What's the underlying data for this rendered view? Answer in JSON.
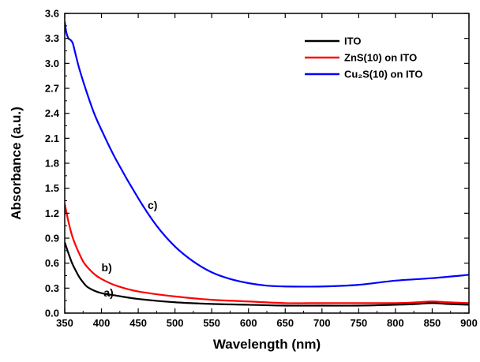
{
  "chart_data": {
    "type": "line",
    "title": "",
    "xlabel": "Wavelength (nm)",
    "ylabel": "Absorbance (a.u.)",
    "xlim": [
      350,
      900
    ],
    "ylim": [
      0.0,
      3.6
    ],
    "xticks": [
      350,
      400,
      450,
      500,
      550,
      600,
      650,
      700,
      750,
      800,
      850,
      900
    ],
    "xtick_labels": [
      "350",
      "400",
      "450",
      "500",
      "550",
      "600",
      "650",
      "700",
      "750",
      "800",
      "850",
      "900"
    ],
    "yticks": [
      0.0,
      0.3,
      0.6,
      0.9,
      1.2,
      1.5,
      1.8,
      2.1,
      2.4,
      2.7,
      3.0,
      3.3,
      3.6
    ],
    "ytick_labels": [
      "0.0",
      "0.3",
      "0.6",
      "0.9",
      "1.2",
      "1.5",
      "1.8",
      "2.1",
      "2.4",
      "2.7",
      "3.0",
      "3.3",
      "3.6"
    ],
    "grid": false,
    "legend_position": "top-right",
    "legend": [
      {
        "label": "ITO",
        "color": "#000000"
      },
      {
        "label": "ZnS(10) on ITO",
        "color": "#ff0000"
      },
      {
        "label": "Cu₂S(10) on ITO",
        "color": "#0000ff"
      }
    ],
    "series": [
      {
        "name": "ITO",
        "curve_label": "a)",
        "color": "#000000",
        "x": [
          350,
          355,
          360,
          365,
          370,
          375,
          380,
          390,
          400,
          420,
          450,
          500,
          550,
          600,
          650,
          700,
          750,
          800,
          830,
          850,
          870,
          900
        ],
        "y": [
          0.85,
          0.72,
          0.6,
          0.51,
          0.43,
          0.37,
          0.32,
          0.27,
          0.24,
          0.21,
          0.17,
          0.13,
          0.11,
          0.1,
          0.09,
          0.09,
          0.09,
          0.1,
          0.11,
          0.12,
          0.11,
          0.1
        ]
      },
      {
        "name": "ZnS(10) on ITO",
        "curve_label": "b)",
        "color": "#ff0000",
        "x": [
          350,
          355,
          360,
          365,
          370,
          375,
          380,
          390,
          400,
          420,
          450,
          500,
          550,
          600,
          650,
          700,
          750,
          800,
          830,
          850,
          870,
          900
        ],
        "y": [
          1.31,
          1.1,
          0.93,
          0.81,
          0.71,
          0.62,
          0.56,
          0.47,
          0.41,
          0.33,
          0.26,
          0.2,
          0.16,
          0.14,
          0.12,
          0.12,
          0.12,
          0.12,
          0.13,
          0.14,
          0.13,
          0.12
        ]
      },
      {
        "name": "Cu₂S(10) on ITO",
        "curve_label": "c)",
        "color": "#0000ff",
        "x": [
          350,
          352,
          355,
          358,
          361,
          365,
          370,
          380,
          390,
          400,
          420,
          450,
          475,
          500,
          525,
          550,
          575,
          600,
          625,
          650,
          700,
          750,
          800,
          850,
          900
        ],
        "y": [
          3.5,
          3.38,
          3.3,
          3.28,
          3.24,
          3.1,
          2.93,
          2.65,
          2.4,
          2.2,
          1.84,
          1.38,
          1.05,
          0.8,
          0.62,
          0.49,
          0.41,
          0.36,
          0.33,
          0.32,
          0.32,
          0.34,
          0.39,
          0.42,
          0.46
        ]
      }
    ]
  }
}
